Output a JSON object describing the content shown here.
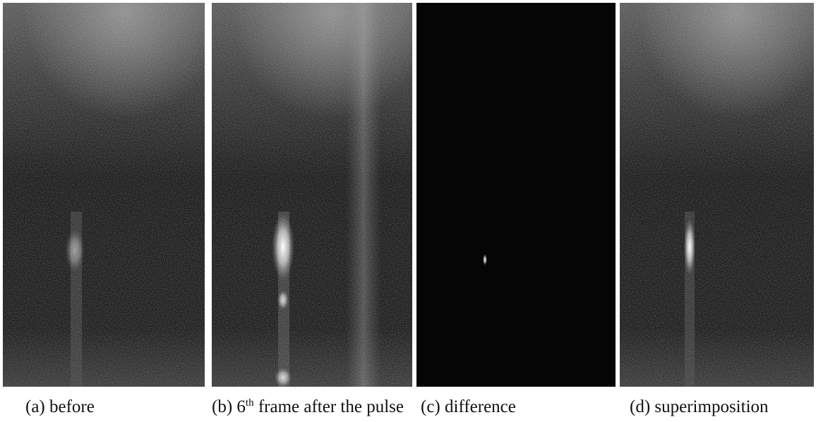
{
  "figure": {
    "captions": [
      {
        "text": "(a) before"
      },
      {
        "prefix": "(b) 6",
        "sup": "th",
        "suffix": " frame after the pulse"
      },
      {
        "text": "(c) difference"
      },
      {
        "text": "(d) superimposition"
      }
    ]
  }
}
